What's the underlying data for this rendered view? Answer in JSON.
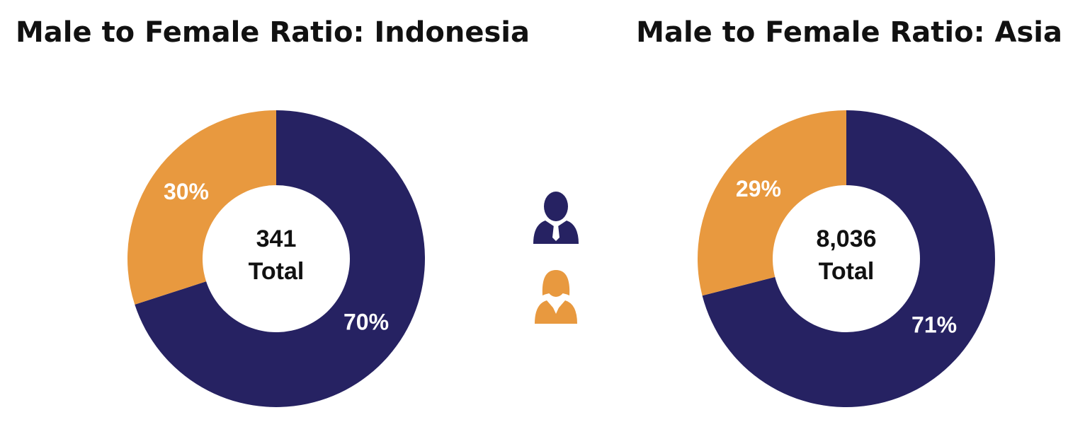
{
  "chart_data": [
    {
      "type": "donut",
      "title": "Male to Female Ratio: Indonesia",
      "values": [
        70,
        30
      ],
      "value_labels": [
        "70%",
        "30%"
      ],
      "colors": [
        "#262262",
        "#e8993f"
      ],
      "total": 341,
      "total_label": "Total"
    },
    {
      "type": "donut",
      "title": "Male to Female Ratio: Asia",
      "values": [
        71,
        29
      ],
      "value_labels": [
        "71%",
        "29%"
      ],
      "colors": [
        "#262262",
        "#e8993f"
      ],
      "total": {
        "value": 8036,
        "label": "8,036"
      },
      "total_label": "Total"
    }
  ]
}
